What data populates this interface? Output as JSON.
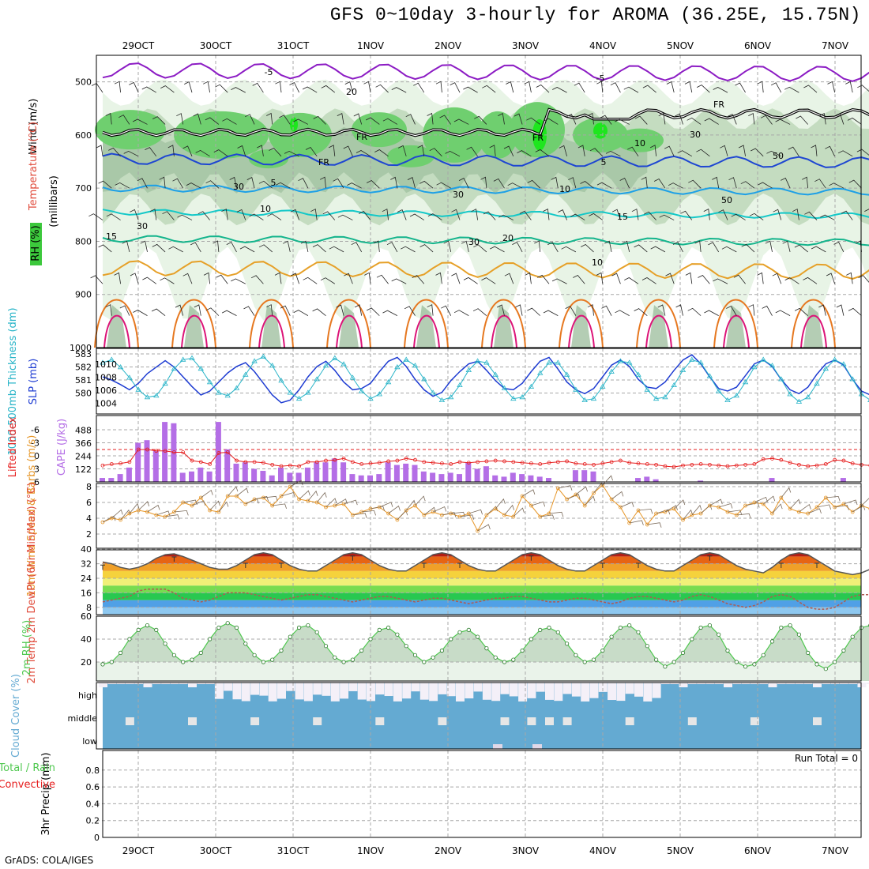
{
  "title": "GFS 0~10day 3-hourly for AROMA (36.25E, 15.75N)",
  "credit": "GrADS: COLA/IGES",
  "colors": {
    "bg": "#ffffff",
    "grid": "#a8a8a8",
    "rh_light": "#e8f4e6",
    "rh_mid": "#c4dcc0",
    "rh_dark": "#94b894",
    "rh_green": "#6fcf6f",
    "rh_bright": "#1ee61e",
    "temp_m5": "#8c1cc4",
    "temp_5": "#1e46d2",
    "temp_10": "#1ea0e6",
    "temp_15": "#14c8c8",
    "temp_20": "#14b48c",
    "temp_25": "#e6a028",
    "temp_30": "#e67820",
    "temp_35": "#dc1478",
    "slp": "#1e3cd2",
    "thick": "#28b4c8",
    "cape": "#b46ee6",
    "li": "#e61e1e",
    "wind10": "#e69628",
    "cloud": "#64aad2",
    "cloud_clear": "#f4f0f8",
    "rh2m": "#50c850"
  },
  "chart_data": [
    {
      "panel": "upper-air",
      "type": "heatmap",
      "ylabel": "Wind (m/s)",
      "ylabel2": "Temperature (°C)",
      "ylabel3": "(millibars)",
      "legend_label": "RH (%)",
      "y_ticks": [
        500,
        600,
        700,
        800,
        900,
        1000
      ],
      "ylim": [
        1000,
        450
      ],
      "x_dates": [
        "29OCT",
        "30OCT",
        "31OCT",
        "1NOV",
        "2NOV",
        "3NOV",
        "4NOV",
        "5NOV",
        "6NOV",
        "7NOV"
      ],
      "contour_labels": [
        "-5",
        "-5",
        "FR",
        "FR",
        "FR",
        "FR",
        "5",
        "5",
        "10",
        "10",
        "15",
        "15",
        "20",
        "20",
        "10",
        "30",
        "30",
        "30",
        "50",
        "50",
        "30",
        "10",
        "30"
      ],
      "isotherm_levels_mb": {
        "-5": 478,
        "5": 645,
        "10": 700,
        "15": 745,
        "20": 795,
        "25": 850
      }
    },
    {
      "panel": "slp-thickness",
      "type": "line",
      "ylabel": "SLP (mb)",
      "ylabel2": "1000-500mb Thickness (dm)",
      "y_ticks_left": [
        "583",
        "582",
        "581",
        "580"
      ],
      "y_ticks_right": [
        "1010",
        "1008",
        "1006",
        "1004"
      ],
      "series": [
        {
          "name": "SLP",
          "values": [
            1008,
            1007.5,
            1006.8,
            1006,
            1007,
            1008.5,
            1009.5,
            1010.5,
            1009.5,
            1008,
            1006.5,
            1005.2,
            1005.8,
            1007.2,
            1008.6,
            1009.6,
            1010.2,
            1008.8,
            1007,
            1005.2,
            1004,
            1004.4,
            1006,
            1008,
            1009.6,
            1010.4,
            1009,
            1007.2,
            1006,
            1006.2,
            1007,
            1008.8,
            1010.4,
            1011,
            1009.6,
            1007.6,
            1006,
            1005,
            1005.6,
            1007.4,
            1008.8,
            1010,
            1010.4,
            1009,
            1007.4,
            1006.2,
            1006,
            1007,
            1008.8,
            1010.4,
            1011,
            1009.2,
            1007.2,
            1006,
            1005.4,
            1006.2,
            1008,
            1009.8,
            1010.6,
            1009.6,
            1007.6,
            1006.4,
            1006.2,
            1007.2,
            1009,
            1010.6,
            1011.4,
            1010,
            1008,
            1006.2,
            1005.8,
            1006.4,
            1008.2,
            1010,
            1010.6,
            1009.6,
            1007.6,
            1006,
            1005.4,
            1006.4,
            1008.4,
            1010,
            1010.6,
            1009.8,
            1007.6,
            1005.8,
            1005.2
          ]
        },
        {
          "name": "Thickness",
          "values": [
            582.6,
            582.8,
            582.3,
            581.6,
            580.8,
            580.3,
            580.4,
            581.2,
            582.2,
            582.8,
            582.9,
            582.2,
            581.3,
            580.6,
            580.4,
            580.9,
            581.8,
            582.7,
            583,
            582.4,
            581.4,
            580.6,
            580.2,
            580.6,
            581.5,
            582.4,
            582.9,
            582.5,
            581.6,
            580.7,
            580.2,
            580.5,
            581.3,
            582.3,
            582.8,
            582.4,
            581.5,
            580.6,
            580.1,
            580.3,
            581.1,
            582.1,
            582.7,
            582.6,
            581.8,
            580.9,
            580.2,
            580.3,
            581,
            581.9,
            582.6,
            582.6,
            581.8,
            580.8,
            580.1,
            580.2,
            581,
            582,
            582.7,
            582.6,
            581.8,
            580.8,
            580.2,
            580.3,
            581.1,
            582.1,
            582.8,
            582.6,
            581.7,
            580.7,
            580.1,
            580.4,
            581.3,
            582.3,
            582.8,
            582.4,
            581.5,
            580.5,
            580,
            580.3,
            581.2,
            582.2,
            582.8,
            582.5,
            581.5,
            580.5,
            580.1
          ]
        }
      ]
    },
    {
      "panel": "cape-li",
      "type": "bar",
      "ylabel": "CAPE (J/kg)",
      "ylabel2": "Lifted Index",
      "y_ticks_left": [
        "6",
        "3",
        "0",
        "-3",
        "-6"
      ],
      "y_ticks_right": [
        "122",
        "244",
        "366",
        "488"
      ],
      "series": [
        {
          "name": "CAPE",
          "values": [
            30,
            30,
            60,
            110,
            300,
            320,
            240,
            460,
            450,
            70,
            80,
            110,
            80,
            460,
            250,
            140,
            150,
            100,
            85,
            50,
            110,
            70,
            70,
            110,
            150,
            150,
            180,
            150,
            60,
            50,
            50,
            60,
            150,
            130,
            140,
            130,
            80,
            70,
            60,
            70,
            60,
            150,
            100,
            120,
            50,
            40,
            70,
            60,
            50,
            40,
            30,
            0,
            0,
            90,
            90,
            80,
            0,
            0,
            0,
            0,
            30,
            40,
            20,
            0,
            0,
            0,
            0,
            10,
            0,
            0,
            0,
            0,
            0,
            0,
            0,
            30,
            0,
            0,
            0,
            0,
            0,
            0,
            0,
            30,
            0,
            0,
            0
          ]
        },
        {
          "name": "Lifted Index",
          "values": [
            4.6,
            4.2,
            4,
            3.6,
            0,
            0,
            0.4,
            0.4,
            0.8,
            0.8,
            3.2,
            3.6,
            4.2,
            1,
            0.8,
            3.2,
            3.6,
            3.6,
            3.8,
            4.4,
            4.8,
            4.6,
            4.8,
            3.6,
            3.6,
            3.2,
            3,
            2.6,
            3.6,
            4.2,
            4,
            3.8,
            3.4,
            3.2,
            2.6,
            3,
            3.6,
            3.8,
            4,
            4.2,
            3.6,
            3.8,
            3.6,
            3.4,
            3.2,
            3.4,
            3.6,
            3.8,
            4,
            4.2,
            3.8,
            3.6,
            3.4,
            4,
            4.2,
            4.4,
            4,
            3.6,
            3.2,
            3.8,
            4,
            4.2,
            4.4,
            4.8,
            5,
            4.6,
            4.4,
            4.2,
            4.4,
            4.6,
            4.8,
            4.6,
            4.4,
            4.2,
            2.8,
            2.6,
            3,
            3.8,
            4.4,
            4.8,
            4.6,
            4.2,
            3,
            3.2,
            4,
            4.4,
            4.6
          ]
        }
      ]
    },
    {
      "panel": "wind10",
      "type": "line",
      "ylabel": "10m Wind Speed & Barbs (m/s)",
      "y_ticks": [
        "2",
        "4",
        "6",
        "8"
      ],
      "series": [
        {
          "name": "10m Wind Speed",
          "values": [
            3.5,
            4,
            3.8,
            4.6,
            5,
            4.8,
            4.4,
            4.2,
            4.8,
            6,
            5.6,
            6.6,
            5,
            4.8,
            6.8,
            6.8,
            5.8,
            6.4,
            6.6,
            5.6,
            6.8,
            8,
            6.4,
            6.2,
            6,
            5.4,
            5.6,
            5.8,
            4.4,
            4.8,
            5.2,
            5.4,
            4.6,
            3.8,
            5,
            5.6,
            4.4,
            4.8,
            4.4,
            4.6,
            4.2,
            4.6,
            2.4,
            4.4,
            5.2,
            4.4,
            4.2,
            6.8,
            5.6,
            4.2,
            4.6,
            7.8,
            6.4,
            7,
            5.6,
            7.2,
            8.2,
            6.4,
            5.4,
            3.4,
            5,
            3.2,
            4.6,
            4.8,
            5.2,
            3.8,
            4.4,
            4.6,
            5.6,
            5.4,
            4.8,
            4.4,
            5.6,
            6,
            5.8,
            4.6,
            6.6,
            5.2,
            4.8,
            4.6,
            5.4,
            6.6,
            5.4,
            5.8,
            4.8,
            5.6,
            5.2,
            6.2,
            5.4,
            5.8
          ]
        }
      ]
    },
    {
      "panel": "temp-dewpt",
      "type": "area",
      "ylabel": "2m Temp 2m DewPt (6hr Min/Max) (°C)",
      "y_ticks": [
        "8",
        "16",
        "24",
        "32",
        "40"
      ],
      "series": [
        {
          "name": "2m Temp",
          "values": [
            33,
            32,
            30,
            29,
            30,
            32,
            35,
            37,
            37.5,
            36,
            34,
            32,
            30,
            29,
            29,
            31,
            34,
            37,
            38,
            37,
            34,
            31,
            29,
            28,
            28,
            31,
            34,
            37,
            38,
            37,
            34,
            31,
            29,
            28,
            28,
            31,
            34,
            37,
            38,
            37,
            34,
            31,
            29,
            28,
            28,
            31,
            34,
            37,
            38,
            37,
            34,
            31,
            29,
            28,
            28,
            31,
            34,
            37,
            38,
            37,
            34,
            31,
            29,
            28,
            28,
            31,
            34,
            37,
            38,
            37,
            34,
            31,
            29,
            28,
            27,
            30,
            34,
            37,
            38,
            37,
            34,
            31,
            28,
            27,
            26,
            27,
            29
          ]
        },
        {
          "name": "2m DewPt",
          "values": [
            11,
            12,
            13,
            14,
            17,
            18,
            18,
            18,
            16,
            13,
            12,
            11,
            12,
            14,
            16,
            16,
            16,
            15,
            14,
            13,
            12,
            13,
            14,
            15,
            15,
            14,
            13,
            12,
            11,
            12,
            13,
            14,
            14,
            13,
            12,
            11,
            12,
            13,
            13,
            12,
            11,
            10,
            11,
            12,
            13,
            13,
            14,
            14,
            13,
            12,
            11,
            11,
            12,
            13,
            13,
            12,
            11,
            10,
            11,
            13,
            14,
            14,
            13,
            12,
            11,
            12,
            14,
            15,
            14,
            12,
            10,
            9,
            8,
            9,
            11,
            14,
            15,
            14,
            11,
            8,
            7,
            7,
            8,
            11,
            14,
            15,
            15
          ]
        }
      ]
    },
    {
      "panel": "rh2m",
      "type": "area",
      "ylabel": "2m RH (%)",
      "y_ticks": [
        "20",
        "40",
        "60"
      ],
      "series": [
        {
          "name": "2m RH",
          "values": [
            18,
            20,
            28,
            40,
            48,
            52,
            48,
            36,
            26,
            20,
            22,
            28,
            40,
            50,
            54,
            50,
            36,
            26,
            20,
            22,
            30,
            42,
            50,
            52,
            46,
            34,
            24,
            20,
            22,
            30,
            40,
            48,
            50,
            44,
            34,
            26,
            20,
            24,
            30,
            40,
            46,
            48,
            42,
            32,
            24,
            20,
            22,
            30,
            40,
            48,
            50,
            46,
            36,
            26,
            20,
            22,
            30,
            42,
            50,
            52,
            46,
            34,
            22,
            16,
            20,
            28,
            40,
            50,
            52,
            44,
            30,
            20,
            16,
            18,
            26,
            38,
            50,
            52,
            44,
            28,
            18,
            14,
            20,
            30,
            42,
            50,
            52
          ]
        }
      ]
    },
    {
      "panel": "cloud",
      "type": "heatmap",
      "ylabel": "Cloud Cover (%)",
      "y_ticks": [
        "high",
        "middle",
        "low"
      ]
    },
    {
      "panel": "precip",
      "type": "bar",
      "ylabel": "3hr Precip (mm)",
      "ylabel2": "Total / Rain",
      "ylabel3": "Convective",
      "annotation": "Run Total = 0",
      "y_ticks": [
        "0",
        "0.2",
        "0.4",
        "0.6",
        "0.8"
      ],
      "ylim": [
        0,
        1
      ],
      "x_dates": [
        "29OCT",
        "30OCT",
        "31OCT",
        "1NOV",
        "2NOV",
        "3NOV",
        "4NOV",
        "5NOV",
        "6NOV",
        "7NOV"
      ]
    }
  ]
}
